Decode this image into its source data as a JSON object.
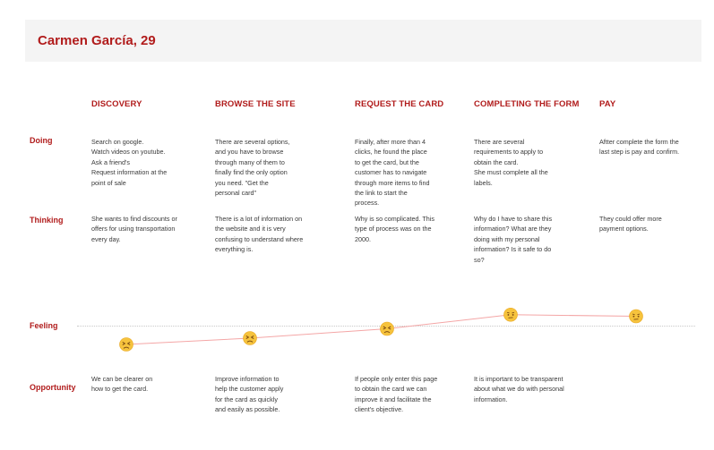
{
  "persona": {
    "title": "Carmen García, 29"
  },
  "stages": [
    {
      "name": "DISCOVERY"
    },
    {
      "name": "BROWSE THE SITE"
    },
    {
      "name": "REQUEST THE CARD"
    },
    {
      "name": "COMPLETING THE FORM"
    },
    {
      "name": "PAY"
    }
  ],
  "rows": {
    "doing": {
      "label": "Doing",
      "cells": [
        "Search on google.\nWatch videos on youtube.\nAsk a friend's\nRequest information at the\npoint of sale",
        "There are several options,\nand you have to browse\nthrough many of them to\nfinally find the only option\nyou need. \"Get the\npersonal card\"",
        "Finally, after more than 4\nclicks, he found the place\nto get the card, but the\ncustomer has to navigate\nthrough more items to find\nthe link to start the\nprocess.",
        "There are several\nrequirements to apply to\nobtain the card.\nShe must complete all the\nlabels.",
        "Aftter complete the form the\nlast step is pay and confirm."
      ]
    },
    "thinking": {
      "label": "Thinking",
      "cells": [
        "She wants to find discounts or\noffers for using transportation\nevery day.",
        "There is a lot of information on\nthe website and it is very\nconfusing to understand where\neverything is.",
        "Why is so complicated. This\ntype of process was on the\n2000.",
        "Why do I have to share this\ninformation? What are they\ndoing with my personal\ninformation? Is it safe to do\nso?",
        "They could offer more\npayment options."
      ]
    },
    "feeling": {
      "label": "Feeling"
    },
    "opportunity": {
      "label": "Opportunity",
      "cells": [
        "We can be clearer on\nhow to get the card.",
        "Improve information to\nhelp the customer apply\nfor the card as quickly\nand easily as possible.",
        "If people only enter this page\nto obtain the card we can\nimprove it and facilitate the\nclient's objective.",
        "It is important to be transparent\nabout what we do with personal\ninformation.",
        ""
      ]
    }
  },
  "chart_data": {
    "type": "line",
    "categories": [
      "DISCOVERY",
      "BROWSE THE SITE",
      "REQUEST THE CARD",
      "COMPLETING THE FORM",
      "PAY"
    ],
    "series": [
      {
        "values": [
          -0.6,
          -0.4,
          -0.1,
          0.35,
          0.3
        ],
        "emoji": [
          "frustrated",
          "frustrated",
          "frustrated",
          "neutral",
          "neutral"
        ]
      }
    ],
    "ylim": [
      -1,
      1
    ],
    "baseline": 0,
    "line_color": "#f4a6a6",
    "emoji_color": "#f6c33d",
    "emoji_edge_color": "#e8a51f"
  }
}
